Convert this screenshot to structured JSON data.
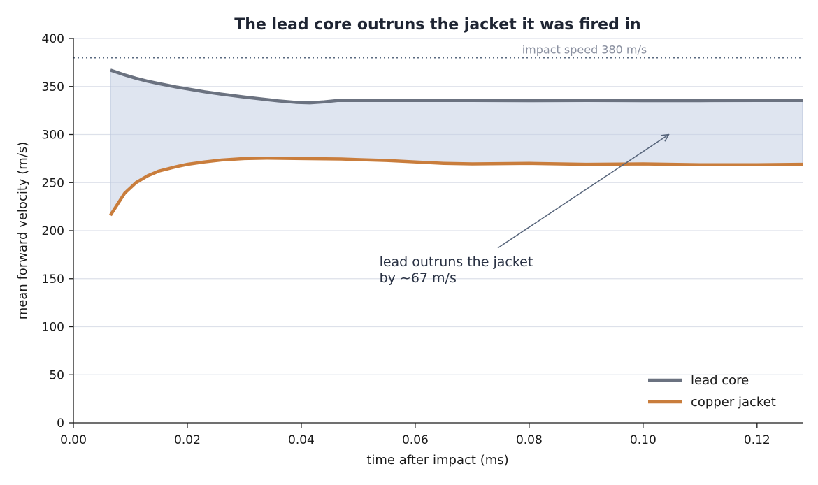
{
  "chart_data": {
    "type": "line",
    "title": "The lead core outruns the jacket it was fired in",
    "xlabel": "time after impact (ms)",
    "ylabel": "mean forward velocity (m/s)",
    "xlim": [
      0.0,
      0.128
    ],
    "ylim": [
      0,
      400
    ],
    "x_ticks": [
      0.0,
      0.02,
      0.04,
      0.06,
      0.08,
      0.1,
      0.12
    ],
    "x_tick_labels": [
      "0.00",
      "0.02",
      "0.04",
      "0.06",
      "0.08",
      "0.10",
      "0.12"
    ],
    "y_ticks": [
      0,
      50,
      100,
      150,
      200,
      250,
      300,
      350,
      400
    ],
    "y_tick_labels": [
      "0",
      "50",
      "100",
      "150",
      "200",
      "250",
      "300",
      "350",
      "400"
    ],
    "grid": "horizontal",
    "legend_position": "bottom-right",
    "series": [
      {
        "name": "lead core",
        "color": "#6b7280",
        "x": [
          0.0065,
          0.009,
          0.011,
          0.013,
          0.015,
          0.018,
          0.02,
          0.023,
          0.026,
          0.03,
          0.033,
          0.036,
          0.039,
          0.0415,
          0.044,
          0.0465,
          0.05,
          0.06,
          0.07,
          0.08,
          0.09,
          0.1,
          0.11,
          0.12,
          0.128
        ],
        "values": [
          367,
          362,
          358.5,
          355.5,
          353,
          349.5,
          347.5,
          344.5,
          342,
          339,
          337,
          335,
          333.5,
          333,
          334,
          335.5,
          335.5,
          335.5,
          335.5,
          335.3,
          335.5,
          335.3,
          335.3,
          335.5,
          335.5
        ]
      },
      {
        "name": "copper jacket",
        "color": "#c97d3c",
        "x": [
          0.0065,
          0.009,
          0.011,
          0.013,
          0.015,
          0.018,
          0.02,
          0.023,
          0.026,
          0.03,
          0.034,
          0.04,
          0.047,
          0.055,
          0.06,
          0.065,
          0.07,
          0.08,
          0.09,
          0.1,
          0.11,
          0.12,
          0.128
        ],
        "values": [
          216,
          239,
          250,
          257,
          262,
          266.5,
          269,
          271.5,
          273.5,
          275,
          275.5,
          275,
          274.5,
          273,
          271.5,
          270,
          269.5,
          270,
          269,
          269.5,
          268.5,
          268.5,
          269
        ]
      }
    ],
    "fill_between": {
      "upper": "lead core",
      "lower": "copper jacket",
      "color": "#c5d0e3"
    },
    "reference_line": {
      "y": 380,
      "label": "impact speed 380 m/s"
    },
    "annotation": {
      "lines": [
        "lead outruns the jacket",
        "by ~67 m/s"
      ],
      "text_at": [
        0.0537,
        168
      ],
      "arrow_from": [
        0.0745,
        182
      ],
      "arrow_to": [
        0.1045,
        300
      ]
    }
  }
}
